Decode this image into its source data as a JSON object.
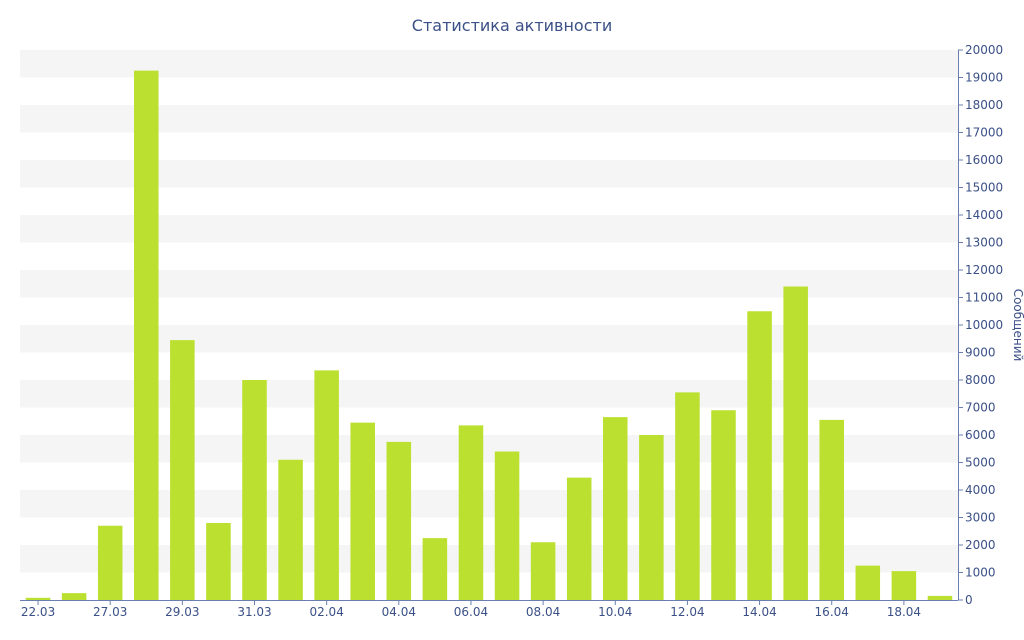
{
  "chart_data": {
    "type": "bar",
    "title": "Статистика активности",
    "xlabel": "",
    "ylabel": "Сообщений",
    "ylim": [
      0,
      20000
    ],
    "y_ticks": [
      0,
      1000,
      2000,
      3000,
      4000,
      5000,
      6000,
      7000,
      8000,
      9000,
      10000,
      11000,
      12000,
      13000,
      14000,
      15000,
      16000,
      17000,
      18000,
      19000,
      20000
    ],
    "y_axis_position": "right",
    "grid": "alternating horizontal bands",
    "legend": "none",
    "categories": [
      "22.03",
      "",
      "27.03",
      "",
      "29.03",
      "",
      "31.03",
      "",
      "02.04",
      "",
      "04.04",
      "",
      "06.04",
      "",
      "08.04",
      "",
      "10.04",
      "",
      "12.04",
      "",
      "14.04",
      "",
      "16.04",
      "",
      "18.04",
      ""
    ],
    "x_tick_labels": [
      "22.03",
      "27.03",
      "29.03",
      "31.03",
      "02.04",
      "04.04",
      "06.04",
      "08.04",
      "10.04",
      "12.04",
      "14.04",
      "16.04",
      "18.04"
    ],
    "values": [
      80,
      250,
      2700,
      19250,
      9450,
      2800,
      8000,
      5100,
      8350,
      6450,
      5750,
      2250,
      6350,
      5400,
      2100,
      4450,
      6650,
      6000,
      7550,
      6900,
      10500,
      11400,
      6550,
      1250,
      1050,
      150
    ],
    "colors": {
      "bar": "#bbe02f",
      "text": "#3b5087",
      "axis": "#6a7fb0",
      "band": "#f5f5f5"
    }
  }
}
